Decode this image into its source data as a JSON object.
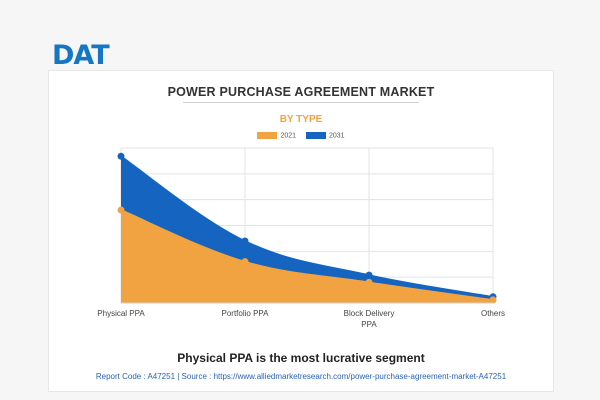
{
  "logo": {
    "text": "DAT"
  },
  "chart_data": {
    "type": "area",
    "title": "POWER PURCHASE AGREEMENT MARKET",
    "subtitle": "BY TYPE",
    "categories": [
      "Physical PPA",
      "Portfolio PPA",
      "Block Delivery PPA",
      "Others"
    ],
    "series": [
      {
        "name": "2021",
        "color": "#f2a341",
        "values": [
          90,
          40,
          20,
          3
        ]
      },
      {
        "name": "2031",
        "color": "#1565c0",
        "values": [
          142,
          60,
          27,
          6
        ]
      }
    ],
    "ylim": [
      0,
      150
    ],
    "grid": true,
    "legend": "top-center"
  },
  "footer": {
    "headline": "Physical PPA is the most lucrative segment",
    "source": "Report Code : A47251  |  Source : https://www.alliedmarketresearch.com/power-purchase-agreement-market-A47251"
  }
}
